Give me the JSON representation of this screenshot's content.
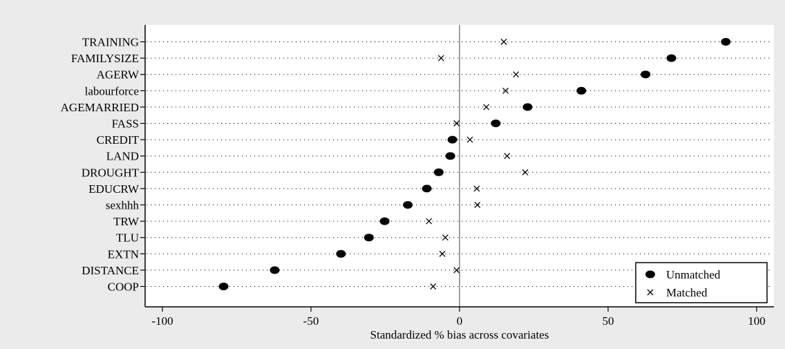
{
  "chart_data": {
    "type": "scatter",
    "title": "",
    "xlabel": "Standardized % bias across covariates",
    "ylabel": "",
    "xlim": [
      -105,
      105
    ],
    "xticks": [
      -100,
      -50,
      0,
      50,
      100
    ],
    "xtick_labels": [
      "-100",
      "-50",
      "0",
      "50",
      "100"
    ],
    "reference_line_x": 0,
    "grid": "dotted horizontal line per covariate",
    "legend_position": "bottom-right",
    "categories": [
      "TRAINING",
      "FAMILYSIZE",
      "AGERW",
      "labourforce",
      "AGEMARRIED",
      "FASS",
      "CREDIT",
      "LAND",
      "DROUGHT",
      "EDUCRW",
      "sexhhh",
      "TRW",
      "TLU",
      "EXTN",
      "DISTANCE",
      "COOP"
    ],
    "series": [
      {
        "name": "Unmatched",
        "marker": "filled-circle",
        "color": "#000000",
        "values": [
          89.6,
          71.3,
          62.6,
          41.0,
          22.9,
          12.2,
          -2.4,
          -3.1,
          -7.0,
          -11.0,
          -17.4,
          -25.2,
          -30.5,
          -39.9,
          -62.2,
          -79.4
        ]
      },
      {
        "name": "Matched",
        "marker": "x",
        "color": "#000000",
        "values": [
          14.9,
          -6.2,
          19.0,
          15.5,
          9.0,
          -1.0,
          3.5,
          16.0,
          22.1,
          5.8,
          6.0,
          -10.3,
          -4.8,
          -5.8,
          -1.0,
          -8.9
        ]
      }
    ]
  },
  "colors": {
    "outer_background": "#ebebeb",
    "plot_background": "#ffffff",
    "reference_line": "#a0a0a0",
    "marks": "#000000"
  }
}
